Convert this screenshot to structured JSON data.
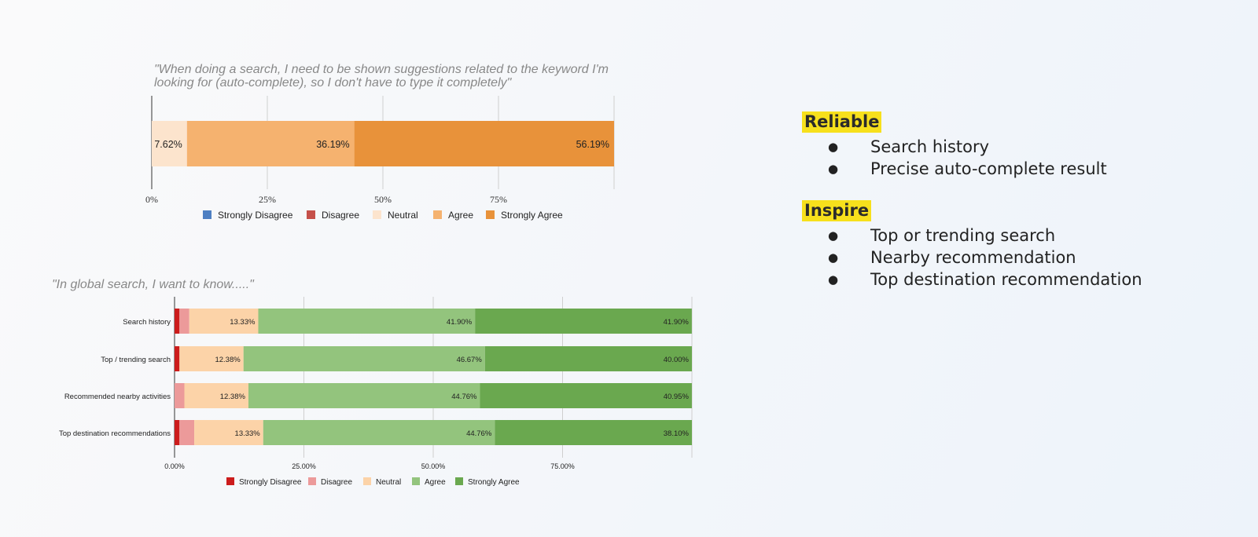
{
  "chart_data": [
    {
      "type": "bar",
      "orientation": "horizontal",
      "stacked": true,
      "title": "\"When doing a search, I need to be shown suggestions related to the keyword I'm looking for (auto-complete), so I don't have to type it completely\"",
      "categories": [
        ""
      ],
      "series": [
        {
          "name": "Strongly Disagree",
          "values": [
            0
          ],
          "color": "#4e7fc2"
        },
        {
          "name": "Disagree",
          "values": [
            0
          ],
          "color": "#c5504a"
        },
        {
          "name": "Neutral",
          "values": [
            7.62
          ],
          "color": "#fce4cd"
        },
        {
          "name": "Agree",
          "values": [
            36.19
          ],
          "color": "#f5b26f"
        },
        {
          "name": "Strongly Agree",
          "values": [
            56.19
          ],
          "color": "#e8923a"
        }
      ],
      "data_labels": [
        "7.62%",
        "36.19%",
        "56.19%"
      ],
      "xlim": [
        0,
        100
      ],
      "xticks": [
        "0%",
        "25%",
        "50%",
        "75%"
      ],
      "legend": "bottom",
      "grid": true
    },
    {
      "type": "bar",
      "orientation": "horizontal",
      "stacked": true,
      "title": "\"In global search, I want to know.....\"",
      "categories": [
        "Search history",
        "Top / trending search",
        "Recommended nearby activities",
        "Top destination recommendations"
      ],
      "series": [
        {
          "name": "Strongly Disagree",
          "values": [
            0.95,
            0.95,
            0,
            0.95
          ],
          "color": "#cc1c1c"
        },
        {
          "name": "Disagree",
          "values": [
            1.9,
            0,
            1.9,
            2.86
          ],
          "color": "#ec9a9a"
        },
        {
          "name": "Neutral",
          "values": [
            13.33,
            12.38,
            12.38,
            13.33
          ],
          "color": "#fcd3a8"
        },
        {
          "name": "Agree",
          "values": [
            41.9,
            46.67,
            44.76,
            44.76
          ],
          "color": "#93c47d"
        },
        {
          "name": "Strongly Agree",
          "values": [
            41.9,
            40.0,
            40.95,
            38.1
          ],
          "color": "#6aa84f"
        }
      ],
      "data_labels": [
        [
          "13.33%",
          "41.90%",
          "41.90%"
        ],
        [
          "12.38%",
          "46.67%",
          "40.00%"
        ],
        [
          "12.38%",
          "44.76%",
          "40.95%"
        ],
        [
          "13.33%",
          "44.76%",
          "38.10%"
        ]
      ],
      "xlim": [
        0,
        100
      ],
      "xticks": [
        "0.00%",
        "25.00%",
        "50.00%",
        "75.00%"
      ],
      "legend": "bottom",
      "grid": true
    }
  ],
  "panel": {
    "reliable": {
      "heading": "Reliable",
      "items": [
        "Search history",
        "Precise auto-complete result"
      ]
    },
    "inspire": {
      "heading": "Inspire",
      "items": [
        "Top or trending search",
        "Nearby recommendation",
        "Top destination recommendation"
      ]
    }
  }
}
